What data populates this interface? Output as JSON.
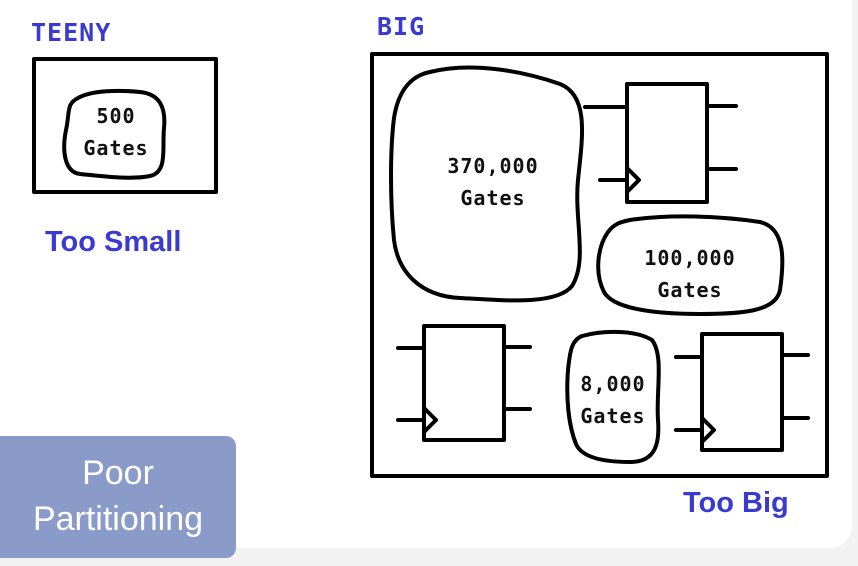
{
  "labels": {
    "teeny": "TEENY",
    "big": "BIG",
    "too_small": "Too Small",
    "too_big": "Too Big"
  },
  "blobs": {
    "teeny_500": {
      "line1": "500",
      "line2": "Gates"
    },
    "big_370000": {
      "line1": "370,000",
      "line2": "Gates"
    },
    "big_100000": {
      "line1": "100,000",
      "line2": "Gates"
    },
    "big_8000": {
      "line1": "8,000",
      "line2": "Gates"
    }
  },
  "badge": {
    "line1": "Poor",
    "line2": "Partitioning"
  },
  "colors": {
    "accent": "#3a3ad0",
    "badge": "#8b9bc9",
    "ink": "#000000"
  }
}
